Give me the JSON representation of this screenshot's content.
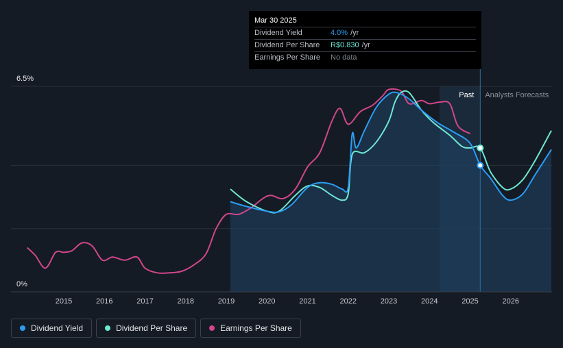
{
  "tooltip": {
    "date": "Mar 30 2025",
    "rows": [
      {
        "label": "Dividend Yield",
        "value": "4.0%",
        "unit": "/yr"
      },
      {
        "label": "Dividend Per Share",
        "value": "R$0.830",
        "unit": "/yr"
      },
      {
        "label": "Earnings Per Share",
        "value": "No data",
        "unit": ""
      }
    ]
  },
  "legend": [
    {
      "label": "Dividend Yield",
      "color": "#2a9df4"
    },
    {
      "label": "Dividend Per Share",
      "color": "#6ee7d3"
    },
    {
      "label": "Earnings Per Share",
      "color": "#d1468c"
    }
  ],
  "chart_data": {
    "type": "line",
    "title": "",
    "xlabel": "",
    "ylabel": "",
    "ylim": [
      0,
      6.5
    ],
    "xlim": [
      2014.0,
      2027.0
    ],
    "y_tick_labels": [
      "6.5%",
      "0%"
    ],
    "x_ticks": [
      2015,
      2016,
      2017,
      2018,
      2019,
      2020,
      2021,
      2022,
      2023,
      2024,
      2025,
      2026
    ],
    "regions": {
      "past_label": "Past",
      "forecast_label": "Analysts Forecasts",
      "forecast_start": 2025.25,
      "shade_start": 2024.25
    },
    "series": [
      {
        "name": "Dividend Yield",
        "color": "#2a9df4",
        "unit": "%",
        "points": [
          [
            2019.1,
            2.85
          ],
          [
            2019.5,
            2.7
          ],
          [
            2020.0,
            2.55
          ],
          [
            2020.3,
            2.53
          ],
          [
            2020.6,
            2.75
          ],
          [
            2021.0,
            3.3
          ],
          [
            2021.3,
            3.45
          ],
          [
            2021.6,
            3.4
          ],
          [
            2021.85,
            3.25
          ],
          [
            2022.0,
            3.3
          ],
          [
            2022.1,
            5.0
          ],
          [
            2022.2,
            4.55
          ],
          [
            2022.4,
            5.1
          ],
          [
            2022.7,
            5.85
          ],
          [
            2023.0,
            6.25
          ],
          [
            2023.2,
            6.3
          ],
          [
            2023.5,
            6.1
          ],
          [
            2023.8,
            5.75
          ],
          [
            2024.2,
            5.35
          ],
          [
            2024.6,
            5.05
          ],
          [
            2025.0,
            4.7
          ],
          [
            2025.25,
            4.0
          ],
          [
            2025.5,
            3.6
          ],
          [
            2025.8,
            3.05
          ],
          [
            2026.0,
            2.9
          ],
          [
            2026.3,
            3.1
          ],
          [
            2026.6,
            3.7
          ],
          [
            2027.0,
            4.5
          ]
        ]
      },
      {
        "name": "Dividend Per Share",
        "color": "#6ee7d3",
        "unit": "R$",
        "points": [
          [
            2019.1,
            3.25
          ],
          [
            2019.5,
            2.85
          ],
          [
            2020.0,
            2.55
          ],
          [
            2020.3,
            2.55
          ],
          [
            2020.7,
            3.05
          ],
          [
            2021.0,
            3.35
          ],
          [
            2021.3,
            3.3
          ],
          [
            2021.6,
            3.05
          ],
          [
            2021.85,
            2.9
          ],
          [
            2022.0,
            3.1
          ],
          [
            2022.1,
            4.35
          ],
          [
            2022.4,
            4.4
          ],
          [
            2022.7,
            4.75
          ],
          [
            2023.0,
            5.4
          ],
          [
            2023.15,
            6.0
          ],
          [
            2023.3,
            6.3
          ],
          [
            2023.5,
            6.3
          ],
          [
            2023.8,
            5.75
          ],
          [
            2024.1,
            5.35
          ],
          [
            2024.5,
            4.95
          ],
          [
            2024.8,
            4.6
          ],
          [
            2025.0,
            4.55
          ],
          [
            2025.25,
            4.55
          ],
          [
            2025.5,
            3.8
          ],
          [
            2025.8,
            3.3
          ],
          [
            2026.0,
            3.25
          ],
          [
            2026.3,
            3.55
          ],
          [
            2026.6,
            4.15
          ],
          [
            2027.0,
            5.1
          ]
        ]
      },
      {
        "name": "Earnings Per Share",
        "color": "#d1468c",
        "unit": "",
        "points": [
          [
            2014.1,
            1.4
          ],
          [
            2014.3,
            1.15
          ],
          [
            2014.55,
            0.75
          ],
          [
            2014.8,
            1.25
          ],
          [
            2015.0,
            1.25
          ],
          [
            2015.2,
            1.3
          ],
          [
            2015.45,
            1.55
          ],
          [
            2015.7,
            1.45
          ],
          [
            2015.95,
            1.0
          ],
          [
            2016.2,
            1.1
          ],
          [
            2016.5,
            1.0
          ],
          [
            2016.8,
            1.1
          ],
          [
            2017.0,
            0.75
          ],
          [
            2017.3,
            0.6
          ],
          [
            2017.6,
            0.6
          ],
          [
            2017.9,
            0.65
          ],
          [
            2018.2,
            0.85
          ],
          [
            2018.5,
            1.2
          ],
          [
            2018.75,
            2.0
          ],
          [
            2019.0,
            2.45
          ],
          [
            2019.3,
            2.45
          ],
          [
            2019.6,
            2.65
          ],
          [
            2019.9,
            2.95
          ],
          [
            2020.1,
            3.05
          ],
          [
            2020.4,
            2.95
          ],
          [
            2020.7,
            3.25
          ],
          [
            2021.0,
            3.95
          ],
          [
            2021.3,
            4.4
          ],
          [
            2021.6,
            5.4
          ],
          [
            2021.8,
            5.8
          ],
          [
            2022.0,
            5.3
          ],
          [
            2022.3,
            5.7
          ],
          [
            2022.6,
            5.9
          ],
          [
            2022.85,
            6.2
          ],
          [
            2023.0,
            6.4
          ],
          [
            2023.3,
            6.35
          ],
          [
            2023.5,
            5.95
          ],
          [
            2023.8,
            6.05
          ],
          [
            2024.0,
            5.95
          ],
          [
            2024.25,
            6.0
          ],
          [
            2024.5,
            5.95
          ],
          [
            2024.7,
            5.25
          ],
          [
            2025.0,
            5.0
          ]
        ]
      }
    ],
    "markers": [
      {
        "series": "Dividend Yield",
        "x": 2025.25,
        "y": 4.0
      },
      {
        "series": "Dividend Per Share",
        "x": 2025.25,
        "y": 4.55
      }
    ]
  }
}
